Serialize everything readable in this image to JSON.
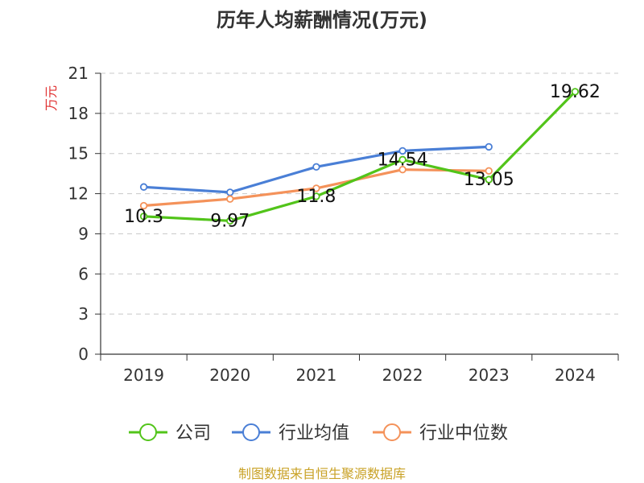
{
  "chart_data": {
    "type": "line",
    "title": "历年人均薪酬情况(万元)",
    "ylabel": "万元",
    "ylim": [
      0,
      21
    ],
    "yticks": [
      0,
      3,
      6,
      9,
      12,
      15,
      18,
      21
    ],
    "categories": [
      "2019",
      "2020",
      "2021",
      "2022",
      "2023",
      "2024"
    ],
    "grid": true,
    "legend_position": "bottom",
    "series": [
      {
        "name": "公司",
        "color": "#52c41a",
        "values": [
          10.3,
          9.97,
          11.8,
          14.54,
          13.05,
          19.62
        ],
        "labels": [
          "10.3",
          "9.97",
          "11.8",
          "14.54",
          "13.05",
          "19.62"
        ]
      },
      {
        "name": "行业均值",
        "color": "#4a7fd6",
        "values": [
          12.5,
          12.1,
          14.0,
          15.2,
          15.5,
          null
        ]
      },
      {
        "name": "行业中位数",
        "color": "#f4925a",
        "values": [
          11.1,
          11.6,
          12.4,
          13.8,
          13.7,
          null
        ]
      }
    ]
  },
  "ylabel_color": "#e03030",
  "source_text": "制图数据来自恒生聚源数据库",
  "source_color": "#c9a227"
}
